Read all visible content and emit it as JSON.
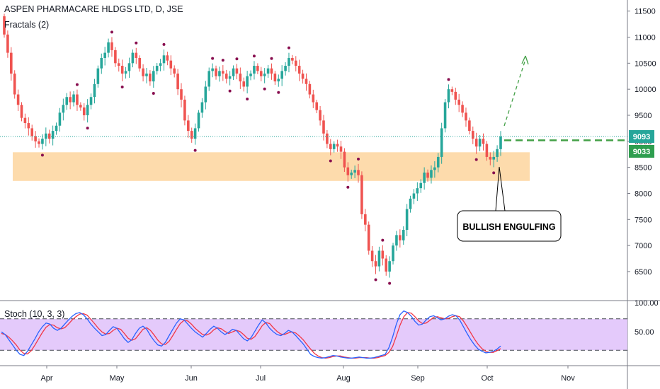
{
  "header": {
    "title": "ASPEN PHARMACARE HLDGS LTD, D, JSE",
    "indicator": "Fractals (2)",
    "stoch_label": "Stoch (10, 3, 3)"
  },
  "colors": {
    "up": "#26a69a",
    "down": "#ef5350",
    "support_zone": "#fdd9a8",
    "stoch_band": "#e1c4fb",
    "stoch_k": "#2962ff",
    "stoch_d": "#f23645",
    "current_price_tag": "#26a69a",
    "fractal": "#880e4f",
    "projection": "#43a047"
  },
  "chart_data": {
    "type": "candlestick",
    "y_axis": {
      "min": 6200,
      "max": 11550,
      "ticks": [
        6500,
        7000,
        7500,
        8000,
        8500,
        9000,
        9500,
        10000,
        10500,
        11000,
        11500
      ]
    },
    "x_axis": {
      "labels": [
        "Apr",
        "May",
        "Jun",
        "Jul",
        "Aug",
        "Sep",
        "Oct",
        "Nov"
      ]
    },
    "price_tags": {
      "last": "9093",
      "level": "9033"
    },
    "support_zone": {
      "from": 8240,
      "to": 8790
    },
    "annotation": "BULLISH ENGULFING",
    "closes": [
      11050,
      10700,
      10300,
      9900,
      9700,
      9450,
      9350,
      9250,
      9100,
      9000,
      8950,
      9050,
      9150,
      9050,
      9200,
      9300,
      9550,
      9700,
      9850,
      9750,
      9900,
      9700,
      9650,
      9500,
      9700,
      9850,
      10100,
      10400,
      10600,
      10700,
      10900,
      10750,
      10500,
      10450,
      10300,
      10350,
      10500,
      10700,
      10600,
      10400,
      10250,
      10300,
      10150,
      10350,
      10450,
      10500,
      10650,
      10550,
      10400,
      10300,
      10000,
      9800,
      9400,
      9200,
      9050,
      9250,
      9550,
      9750,
      10050,
      10350,
      10400,
      10250,
      10350,
      10300,
      10200,
      10250,
      10400,
      10300,
      10150,
      10050,
      10250,
      10300,
      10450,
      10350,
      10250,
      10300,
      10400,
      10300,
      10150,
      10200,
      10350,
      10450,
      10600,
      10550,
      10450,
      10300,
      10200,
      10100,
      9900,
      9750,
      9600,
      9400,
      9150,
      8950,
      8850,
      8950,
      8900,
      8800,
      8500,
      8350,
      8400,
      8450,
      8350,
      7600,
      7400,
      6900,
      6700,
      6600,
      6900,
      6750,
      6500,
      6700,
      7000,
      7200,
      7100,
      7300,
      7700,
      7900,
      8000,
      8100,
      8200,
      8400,
      8300,
      8450,
      8500,
      8700,
      9250,
      9750,
      10000,
      9950,
      9800,
      9700,
      9550,
      9400,
      9200,
      9050,
      8900,
      9050,
      8950,
      8700,
      8650,
      8700,
      8850,
      9093
    ],
    "stoch": {
      "range": [
        0,
        100
      ],
      "levels": [
        20,
        80
      ],
      "ticks": [
        "100.00",
        "50.00"
      ],
      "k": [
        55,
        50,
        40,
        30,
        20,
        12,
        10,
        18,
        30,
        42,
        55,
        65,
        72,
        70,
        62,
        58,
        62,
        70,
        78,
        85,
        90,
        92,
        88,
        80,
        70,
        62,
        55,
        48,
        50,
        58,
        65,
        62,
        52,
        42,
        35,
        40,
        52,
        62,
        66,
        60,
        48,
        38,
        30,
        28,
        35,
        48,
        60,
        72,
        80,
        78,
        70,
        62,
        55,
        50,
        45,
        52,
        60,
        66,
        62,
        55,
        50,
        54,
        60,
        58,
        50,
        42,
        38,
        44,
        56,
        68,
        78,
        72,
        62,
        55,
        50,
        48,
        52,
        58,
        55,
        48,
        40,
        32,
        22,
        12,
        8,
        6,
        5,
        6,
        8,
        10,
        9,
        7,
        6,
        5,
        5,
        6,
        7,
        6,
        5,
        5,
        6,
        8,
        10,
        12,
        25,
        45,
        70,
        88,
        95,
        92,
        85,
        75,
        68,
        70,
        78,
        84,
        86,
        82,
        78,
        80,
        85,
        88,
        86,
        78,
        65,
        52,
        40,
        30,
        22,
        18,
        15,
        16,
        18,
        22,
        28
      ],
      "d": [
        52,
        50,
        45,
        38,
        30,
        20,
        14,
        13,
        19,
        30,
        42,
        54,
        64,
        69,
        68,
        63,
        61,
        63,
        70,
        78,
        84,
        89,
        90,
        87,
        79,
        71,
        62,
        55,
        51,
        52,
        58,
        62,
        60,
        52,
        43,
        39,
        42,
        51,
        60,
        63,
        58,
        49,
        39,
        32,
        31,
        37,
        48,
        60,
        71,
        77,
        76,
        70,
        62,
        56,
        50,
        49,
        52,
        59,
        63,
        61,
        56,
        52,
        55,
        58,
        56,
        50,
        43,
        41,
        46,
        56,
        67,
        73,
        71,
        63,
        56,
        51,
        50,
        53,
        55,
        53,
        47,
        40,
        31,
        22,
        14,
        9,
        6,
        5,
        6,
        8,
        9,
        9,
        7,
        6,
        5,
        5,
        6,
        6,
        6,
        5,
        5,
        6,
        8,
        10,
        16,
        27,
        47,
        68,
        84,
        92,
        91,
        84,
        76,
        71,
        72,
        77,
        83,
        84,
        82,
        80,
        81,
        84,
        86,
        84,
        76,
        65,
        53,
        41,
        31,
        23,
        18,
        16,
        16,
        19,
        23
      ]
    }
  }
}
